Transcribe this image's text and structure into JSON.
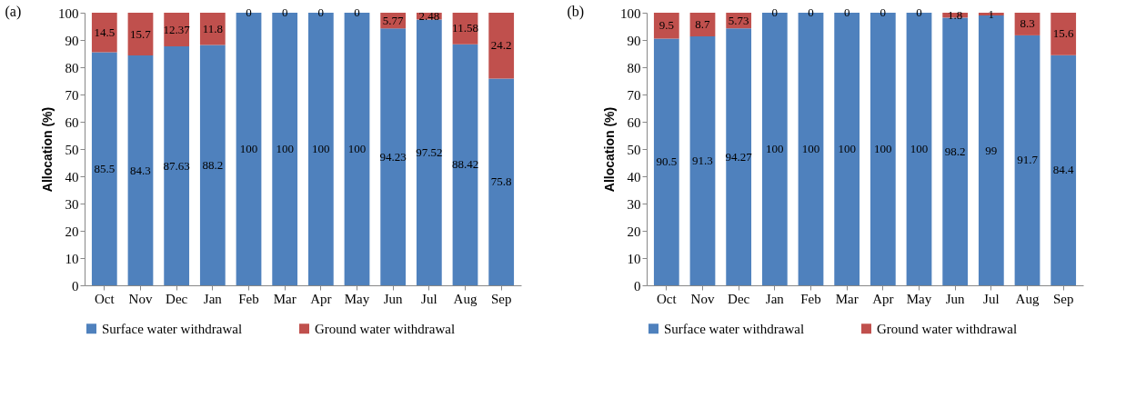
{
  "chart_data": [
    {
      "type": "bar",
      "title": "(a)",
      "ylabel": "Allocation (%)",
      "stacked": true,
      "data_labels": true,
      "grid": false,
      "legend": "bottom",
      "categories": [
        "Oct",
        "Nov",
        "Dec",
        "Jan",
        "Feb",
        "Mar",
        "Apr",
        "May",
        "Jun",
        "Jul",
        "Aug",
        "Sep"
      ],
      "ylim": [
        0,
        100
      ],
      "yticks": [
        0,
        10,
        20,
        30,
        40,
        50,
        60,
        70,
        80,
        90,
        100
      ],
      "series": [
        {
          "name": "Surface water withdrawal",
          "color": "#4f81bd",
          "values": [
            85.5,
            84.3,
            87.63,
            88.2,
            100,
            100,
            100,
            100,
            94.23,
            97.52,
            88.42,
            75.8
          ]
        },
        {
          "name": "Ground water withdrawal",
          "color": "#c0504d",
          "values": [
            14.5,
            15.7,
            12.37,
            11.8,
            0,
            0,
            0,
            0,
            5.77,
            2.48,
            11.58,
            24.2
          ]
        }
      ]
    },
    {
      "type": "bar",
      "title": "(b)",
      "ylabel": "Allocation (%)",
      "stacked": true,
      "data_labels": true,
      "grid": false,
      "legend": "bottom",
      "categories": [
        "Oct",
        "Nov",
        "Dec",
        "Jan",
        "Feb",
        "Mar",
        "Apr",
        "May",
        "Jun",
        "Jul",
        "Aug",
        "Sep"
      ],
      "ylim": [
        0,
        100
      ],
      "yticks": [
        0,
        10,
        20,
        30,
        40,
        50,
        60,
        70,
        80,
        90,
        100
      ],
      "series": [
        {
          "name": "Surface water withdrawal",
          "color": "#4f81bd",
          "values": [
            90.5,
            91.3,
            94.27,
            100,
            100,
            100,
            100,
            100,
            98.2,
            99,
            91.7,
            84.4
          ]
        },
        {
          "name": "Ground water withdrawal",
          "color": "#c0504d",
          "values": [
            9.5,
            8.7,
            5.73,
            0,
            0,
            0,
            0,
            0,
            1.8,
            1,
            8.3,
            15.6
          ]
        }
      ]
    }
  ]
}
